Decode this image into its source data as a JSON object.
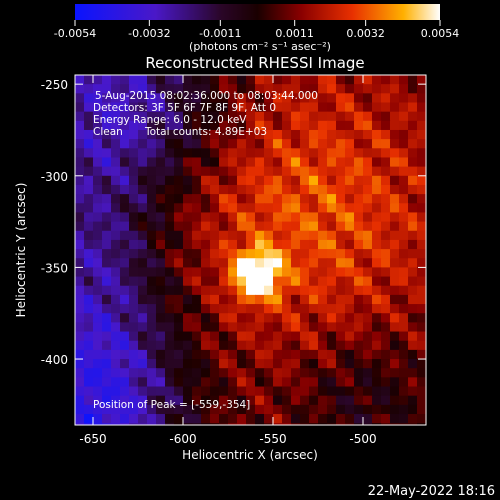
{
  "colorbar": {
    "tick_labels": [
      "-0.0054",
      "-0.0032",
      "-0.0011",
      "0.0011",
      "0.0032",
      "0.0054"
    ],
    "ticks": [
      -0.0054,
      -0.0032,
      -0.0011,
      0.0011,
      0.0032,
      0.0054
    ],
    "range": [
      -0.0054,
      0.0054
    ],
    "unit_label": "(photons cm⁻² s⁻¹ asec⁻²)",
    "colors": [
      "#0a14ff",
      "#5a18b4",
      "#220020",
      "#5a0000",
      "#b01010",
      "#ff4a00",
      "#ffb000",
      "#ffffff"
    ]
  },
  "chart_data": {
    "type": "heatmap",
    "title": "Reconstructed RHESSI Image",
    "xlabel": "Heliocentric X (arcsec)",
    "ylabel": "Heliocentric Y (arcsec)",
    "xlim": [
      -660,
      -465
    ],
    "ylim": [
      -436,
      -245
    ],
    "xticks": [
      -650,
      -600,
      -550,
      -500
    ],
    "yticks": [
      -250,
      -300,
      -350,
      -400
    ],
    "xtick_labels": [
      "-650",
      "-600",
      "-550",
      "-500"
    ],
    "ytick_labels": [
      "-250",
      "-300",
      "-350",
      "-400"
    ],
    "annotations": {
      "time_range": "5-Aug-2015 08:02:36.000 to 08:03:44.000",
      "detectors": "Detectors: 3F 5F 6F 7F 8F 9F, Att 0",
      "energy_range": "Energy Range: 6.0 - 12.0 keV",
      "algorithm": "Clean",
      "total_counts": "Total counts: 4.89E+03",
      "peak_position": "Position of Peak = [-559,-354]"
    },
    "peak": {
      "x": -559,
      "y": -354,
      "value": 0.0054
    }
  },
  "footer": {
    "timestamp": "22-May-2022 18:16"
  }
}
